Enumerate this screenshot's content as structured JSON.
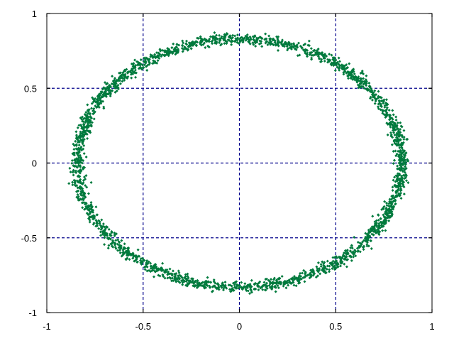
{
  "chart_data": {
    "type": "scatter",
    "title": "",
    "xlabel": "",
    "ylabel": "",
    "xlim": [
      -1,
      1
    ],
    "ylim": [
      -1,
      1
    ],
    "grid": true,
    "grid_style": "dashed",
    "grid_color": "#00008b",
    "marker_color": "#007a3d",
    "xticks": [
      "-1",
      "-0.5",
      "0",
      "0.5",
      "1"
    ],
    "yticks": [
      "1",
      "0.5",
      "0",
      "-0.5",
      "-1"
    ],
    "xtick_values": [
      -1,
      -0.5,
      0,
      0.5,
      1
    ],
    "ytick_values": [
      1,
      0.5,
      0,
      -0.5,
      -1
    ],
    "series": [
      {
        "shape": "noisy ring (ellipse)",
        "center": [
          0.0,
          0.0
        ],
        "radius_x": 0.84,
        "radius_y": 0.83,
        "noise": 0.02,
        "point_count": 2500,
        "samples": [
          [
            0.84,
            0.0
          ],
          [
            0.78,
            0.31
          ],
          [
            0.6,
            0.58
          ],
          [
            0.33,
            0.77
          ],
          [
            0.0,
            0.84
          ],
          [
            -0.33,
            0.77
          ],
          [
            -0.6,
            0.58
          ],
          [
            -0.78,
            0.31
          ],
          [
            -0.84,
            0.0
          ],
          [
            -0.78,
            -0.31
          ],
          [
            -0.6,
            -0.58
          ],
          [
            -0.33,
            -0.77
          ],
          [
            0.0,
            -0.83
          ],
          [
            0.33,
            -0.77
          ],
          [
            0.6,
            -0.58
          ],
          [
            0.78,
            -0.31
          ]
        ]
      }
    ]
  }
}
